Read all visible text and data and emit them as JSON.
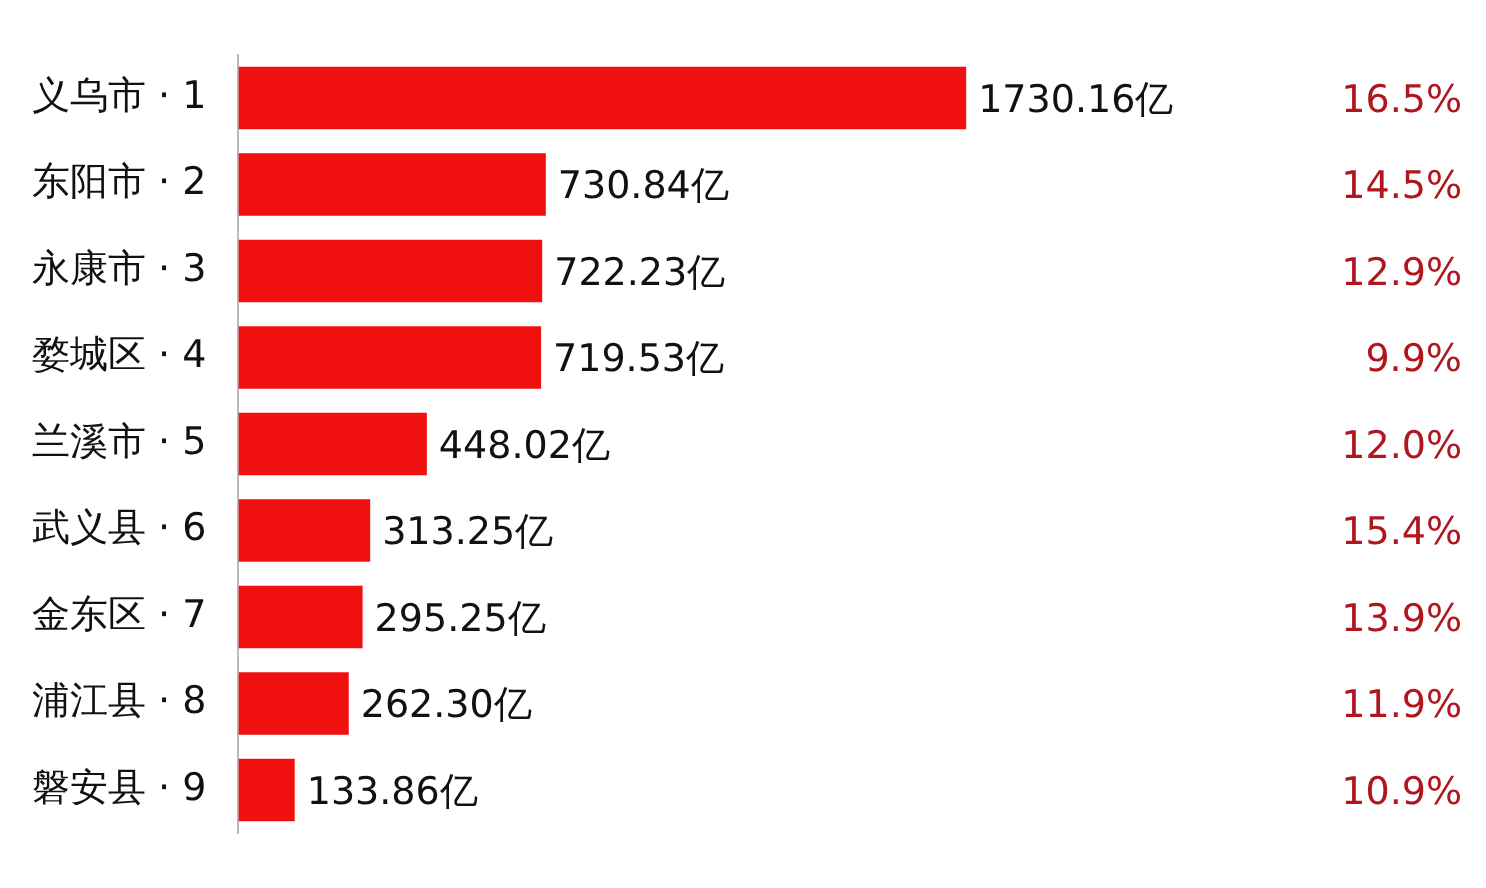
{
  "chart_data": {
    "type": "bar",
    "orientation": "horizontal",
    "categories": [
      "义乌市 · 1",
      "东阳市 · 2",
      "永康市 · 3",
      "婺城区 · 4",
      "兰溪市 · 5",
      "武义县 · 6",
      "金东区 · 7",
      "浦江县 · 8",
      "磐安县 · 9"
    ],
    "values": [
      1730.16,
      730.84,
      722.23,
      719.53,
      448.02,
      313.25,
      295.25,
      262.3,
      133.86
    ],
    "value_labels": [
      "1730.16亿",
      "730.84亿",
      "722.23亿",
      "719.53亿",
      "448.02亿",
      "313.25亿",
      "295.25亿",
      "262.30亿",
      "133.86亿"
    ],
    "color": "#f01010",
    "annotations": [
      "16.5%",
      "14.5%",
      "12.9%",
      "9.9%",
      "12.0%",
      "15.4%",
      "13.9%",
      "11.9%",
      "10.9%"
    ],
    "tick_labels": "y",
    "grid": false,
    "legend": false
  }
}
